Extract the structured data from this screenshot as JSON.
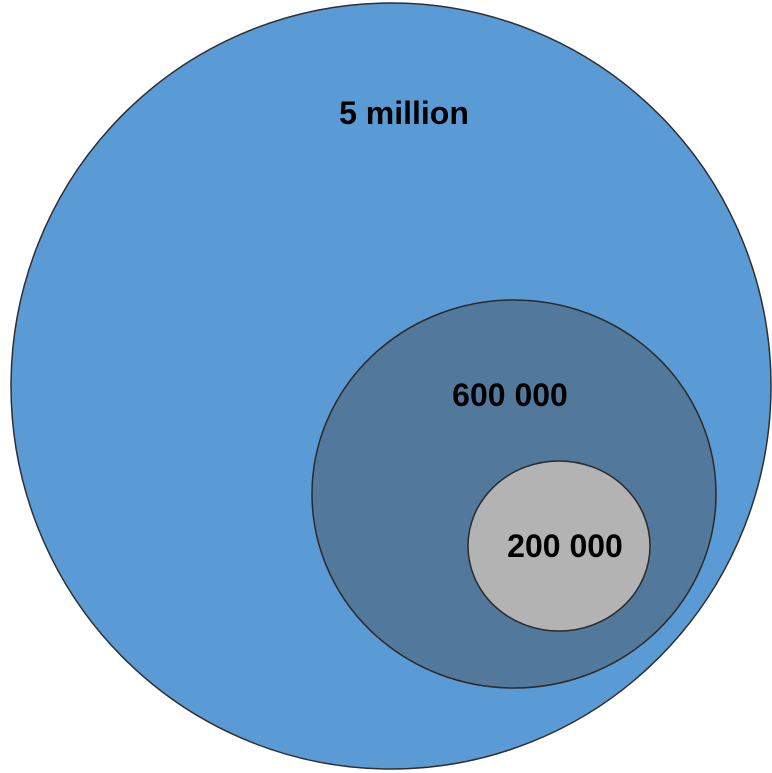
{
  "diagram": {
    "circles": [
      {
        "label": "5 million",
        "fill": "#5b9bd5",
        "stroke": "#2f2f2f"
      },
      {
        "label": "600 000",
        "fill": "#52799b",
        "stroke": "#2a2a2a"
      },
      {
        "label": "200 000",
        "fill": "#b3b3b3",
        "stroke": "#2a2a2a"
      }
    ]
  }
}
